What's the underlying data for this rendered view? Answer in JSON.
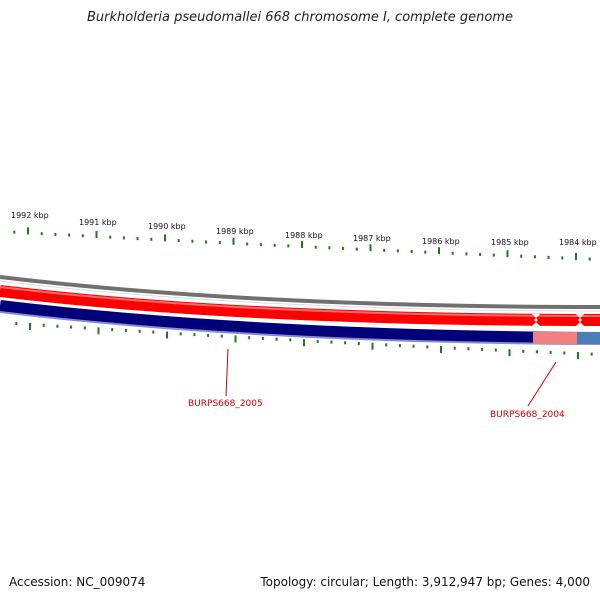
{
  "title": "Burkholderia pseudomallei 668 chromosome I, complete genome",
  "footer": {
    "accession": "Accession: NC_009074",
    "summary": "Topology: circular; Length: 3,912,947 bp; Genes: 4,000"
  },
  "colors": {
    "tick": "#1e7a1e",
    "backbone": "#7a7a7a",
    "forward_gene": "#ff0000",
    "forward_gene_light": "#ff6666",
    "reverse_gene": "#00007a",
    "reverse_gene_highlight_pink": "#f08080",
    "reverse_gene_highlight_blue": "#4a7fb5",
    "label": "#cc0000"
  },
  "scale_labels": [
    "1992 kbp",
    "1991 kbp",
    "1990 kbp",
    "1989 kbp",
    "1988 kbp",
    "1987 kbp",
    "1986 kbp",
    "1985 kbp",
    "1984 kbp"
  ],
  "gene_labels": [
    {
      "id": "gene-label-burps668-2005",
      "text": "BURPS668_2005"
    },
    {
      "id": "gene-label-burps668-2004",
      "text": "BURPS668_2004"
    }
  ]
}
